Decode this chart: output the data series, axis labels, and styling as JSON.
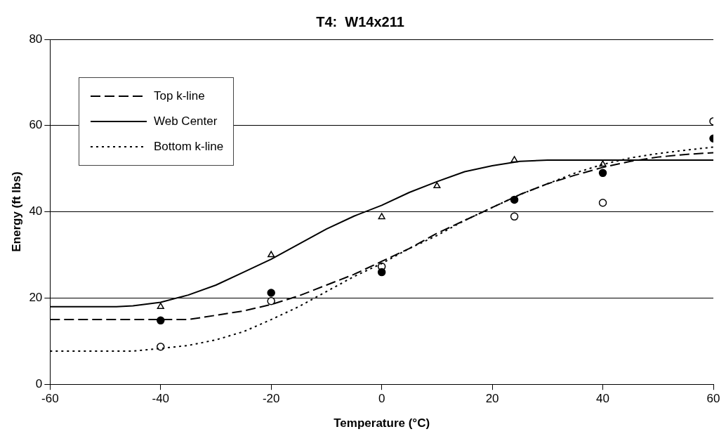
{
  "chart_data": {
    "type": "line",
    "title": "T4:  W14x211",
    "xlabel": "Temperature (°C)",
    "ylabel": "Energy (ft lbs)",
    "xlim": [
      -60,
      60
    ],
    "xticks": [
      -60,
      -40,
      -20,
      0,
      20,
      40,
      60
    ],
    "ylim": [
      0,
      80
    ],
    "yticks": [
      0,
      20,
      40,
      60,
      80
    ],
    "grid": "y",
    "legend": "top left",
    "series": [
      {
        "name": "Top k-line",
        "color": "#000000",
        "line_style": "dashed",
        "marker": "none",
        "x": [
          -60,
          -40,
          -35,
          -30,
          -25,
          -20,
          -15,
          -10,
          -5,
          0,
          5,
          10,
          15,
          20,
          25,
          30,
          35,
          40,
          45,
          50,
          55,
          60
        ],
        "values": [
          15,
          15,
          15,
          16,
          17,
          18.5,
          20.5,
          23,
          25.5,
          28.5,
          31.5,
          35,
          38,
          41,
          44,
          46.5,
          48.5,
          50.3,
          51.7,
          52.7,
          53.3,
          53.7
        ]
      },
      {
        "name": "Web Center",
        "color": "#000000",
        "line_style": "solid",
        "marker": "none",
        "x": [
          -60,
          -48,
          -45,
          -40,
          -35,
          -30,
          -25,
          -20,
          -15,
          -10,
          -5,
          0,
          5,
          10,
          15,
          20,
          25,
          30,
          40,
          60
        ],
        "values": [
          18,
          18,
          18.2,
          19,
          20.7,
          23,
          26,
          29,
          32.5,
          36,
          39,
          41.5,
          44.5,
          47,
          49.3,
          50.7,
          51.7,
          52,
          52,
          52
        ]
      },
      {
        "name": "Bottom k-line",
        "color": "#000000",
        "line_style": "dotted",
        "marker": "none",
        "x": [
          -60,
          -45,
          -40,
          -35,
          -30,
          -25,
          -20,
          -15,
          -10,
          -5,
          0,
          5,
          10,
          15,
          20,
          25,
          30,
          35,
          40,
          45,
          50,
          55,
          60
        ],
        "values": [
          7.7,
          7.7,
          8.3,
          9,
          10.3,
          12.2,
          15,
          18,
          21.5,
          25,
          28,
          31.5,
          34.5,
          38,
          41,
          44,
          46.5,
          49,
          51,
          52.5,
          53.5,
          54.3,
          55
        ]
      },
      {
        "type": "scatter",
        "color": "#000000",
        "marker": "circle",
        "x": [
          -40,
          -20,
          0,
          24,
          40,
          60
        ],
        "values": [
          14.8,
          21.2,
          26,
          42.8,
          49,
          57
        ]
      },
      {
        "type": "scatter",
        "color": "#ffffff",
        "marker": "circle",
        "x": [
          -40,
          -20,
          0,
          24,
          40,
          60
        ],
        "values": [
          8.7,
          19.3,
          27.3,
          38.9,
          42.1,
          61
        ]
      },
      {
        "type": "scatter",
        "color": "#ffffff",
        "marker": "triangle",
        "x": [
          -40,
          -20,
          0,
          10,
          24,
          40
        ],
        "values": [
          18,
          30,
          38.8,
          46,
          52,
          51
        ]
      }
    ]
  }
}
